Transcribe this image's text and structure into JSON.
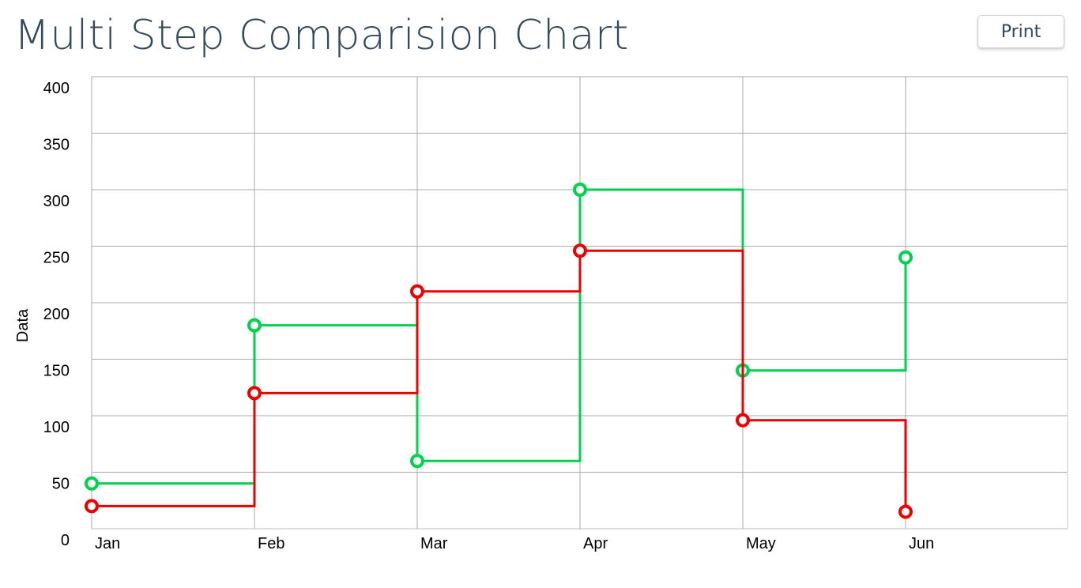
{
  "page": {
    "title": "Multi Step Comparision Chart",
    "print_label": "Print"
  },
  "chart_data": {
    "type": "line",
    "step": true,
    "categories": [
      "Jan",
      "Feb",
      "Mar",
      "Apr",
      "May",
      "Jun"
    ],
    "series": [
      {
        "color": "#00d24e",
        "values": [
          40,
          180,
          60,
          300,
          140,
          240
        ]
      },
      {
        "color": "#ee0000",
        "values": [
          20,
          120,
          210,
          246,
          96,
          15
        ]
      }
    ],
    "ylabel": "Data",
    "ylim": [
      0,
      400
    ],
    "yticks": [
      0,
      50,
      100,
      150,
      200,
      250,
      300,
      350,
      400
    ],
    "grid": true
  }
}
